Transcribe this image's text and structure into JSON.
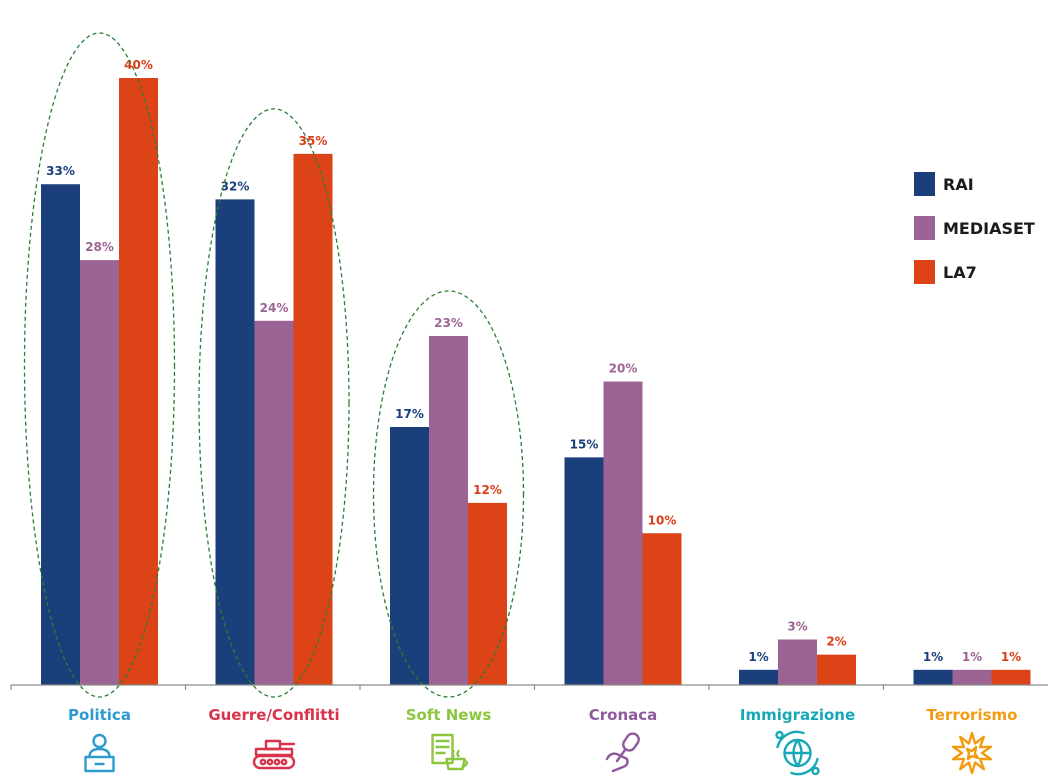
{
  "chart_data": {
    "type": "bar",
    "categories": [
      "Politica",
      "Guerre/Conflitti",
      "Soft News",
      "Cronaca",
      "Immigrazione",
      "Terrorismo"
    ],
    "category_colors": [
      "#2e9ad0",
      "#d8334a",
      "#8cc63f",
      "#8e5a9b",
      "#17a8b8",
      "#f39c12"
    ],
    "category_icons": [
      "speaker-at-podium-icon",
      "tank-icon",
      "newspaper-coffee-icon",
      "microphone-hand-icon",
      "globe-people-icon",
      "explosion-icon"
    ],
    "series": [
      {
        "name": "RAI",
        "color": "#1a3f7a",
        "values": [
          33,
          32,
          17,
          15,
          1,
          1
        ],
        "labels": [
          "33%",
          "32%",
          "17%",
          "15%",
          "1%",
          "1%"
        ]
      },
      {
        "name": "MEDIASET",
        "color": "#9c6494",
        "values": [
          28,
          24,
          23,
          20,
          3,
          1
        ],
        "labels": [
          "28%",
          "24%",
          "23%",
          "20%",
          "3%",
          "1%"
        ]
      },
      {
        "name": "LA7",
        "color": "#dc4317",
        "values": [
          40,
          35,
          12,
          10,
          2,
          1
        ],
        "labels": [
          "40%",
          "35%",
          "12%",
          "10%",
          "2%",
          "1%"
        ]
      }
    ],
    "label_colors": [
      "#1a3f7a",
      "#9c6494",
      "#d93f17"
    ],
    "highlighted_categories": [
      "Politica",
      "Guerre/Conflitti",
      "Soft News"
    ],
    "highlight_color": "#2e7d32",
    "ylim": [
      0,
      42
    ],
    "grid": false,
    "legend_position": "right"
  }
}
